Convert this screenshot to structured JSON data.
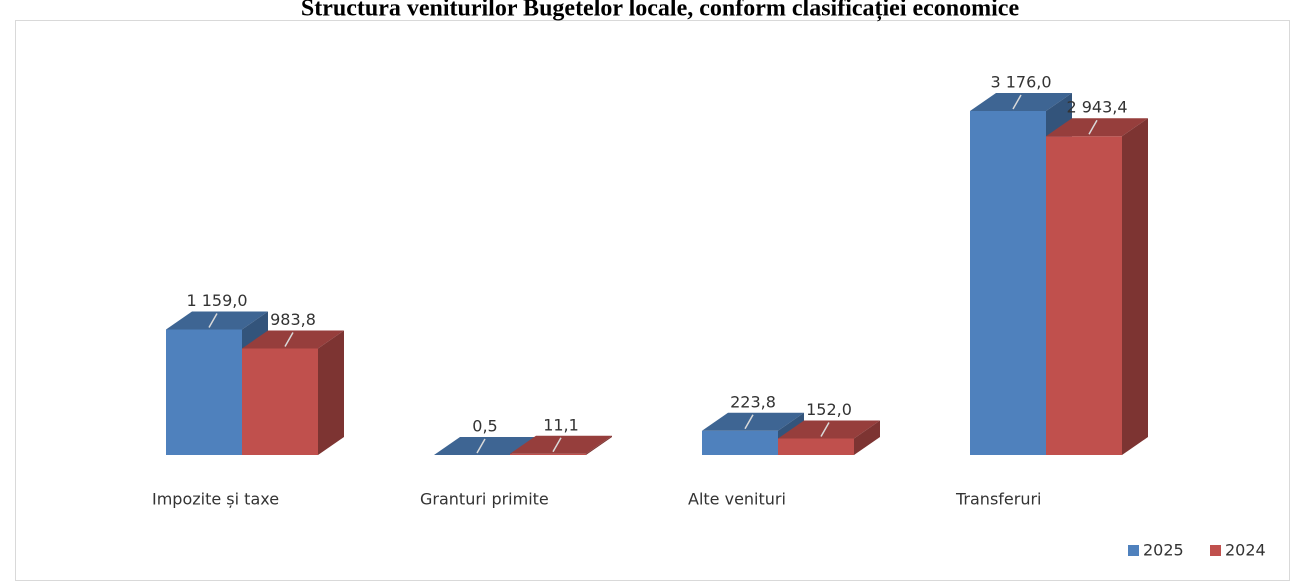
{
  "chart_data": {
    "type": "bar3d",
    "title": "Structura veniturilor Bugetelor locale, conform clasificației economice",
    "categories": [
      "Impozite și taxe",
      "Granturi primite",
      "Alte venituri",
      "Transferuri"
    ],
    "series": [
      {
        "name": "2025",
        "color": "#4f81bd",
        "values": [
          1159.0,
          0.5,
          223.8,
          3176.0
        ],
        "value_labels": [
          "1 159,0",
          "0,5",
          "223,8",
          "3 176,0"
        ]
      },
      {
        "name": "2024",
        "color": "#c0504d",
        "values": [
          983.8,
          11.1,
          152.0,
          2943.4
        ],
        "value_labels": [
          "983,8",
          "11,1",
          "152,0",
          "2 943,4"
        ]
      }
    ],
    "legend": "bottom-right"
  }
}
